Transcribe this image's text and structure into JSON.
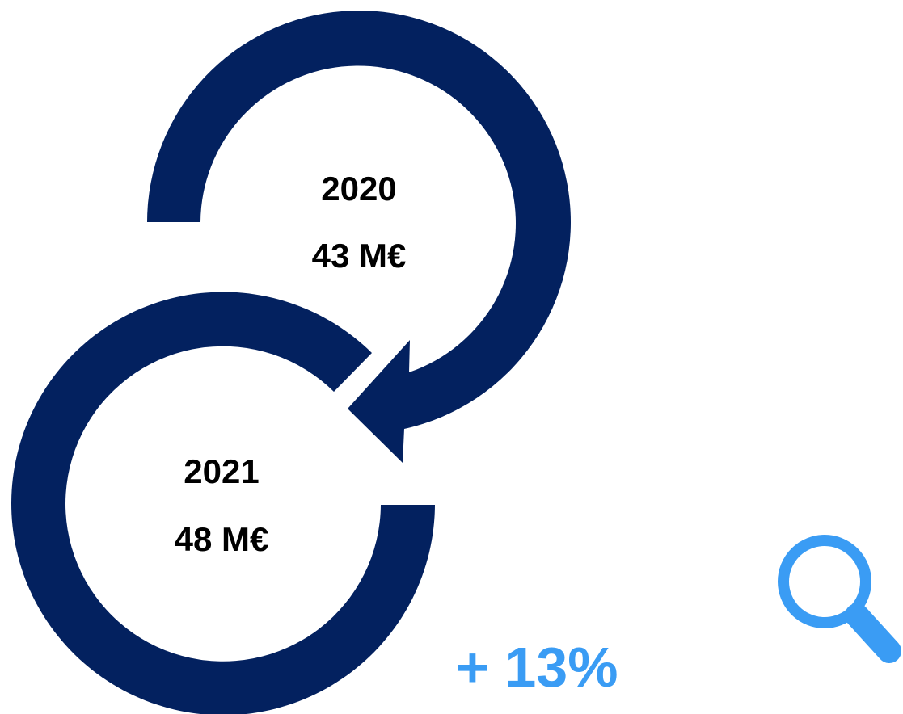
{
  "colors": {
    "ring": "#03215f",
    "accent": "#3a9cf4",
    "text": "#000000"
  },
  "cycle_2020": {
    "year": "2020",
    "value": "43 M€"
  },
  "cycle_2021": {
    "year": "2021",
    "value": "48 M€"
  },
  "growth": {
    "label": "+ 13%"
  },
  "icons": {
    "search": "search-icon"
  }
}
